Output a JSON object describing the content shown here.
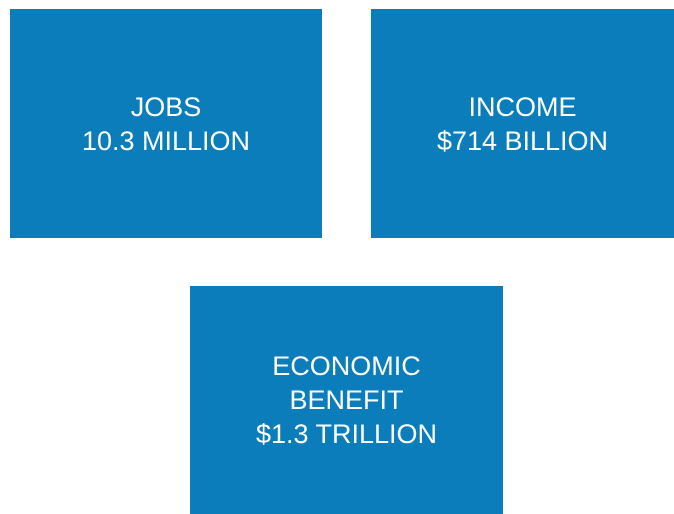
{
  "boxes": [
    {
      "lines": [
        "JOBS",
        "10.3 MILLION"
      ]
    },
    {
      "lines": [
        "INCOME",
        "$714 BILLION"
      ]
    },
    {
      "lines": [
        "ECONOMIC",
        "BENEFIT",
        "$1.3 TRILLION"
      ]
    }
  ]
}
